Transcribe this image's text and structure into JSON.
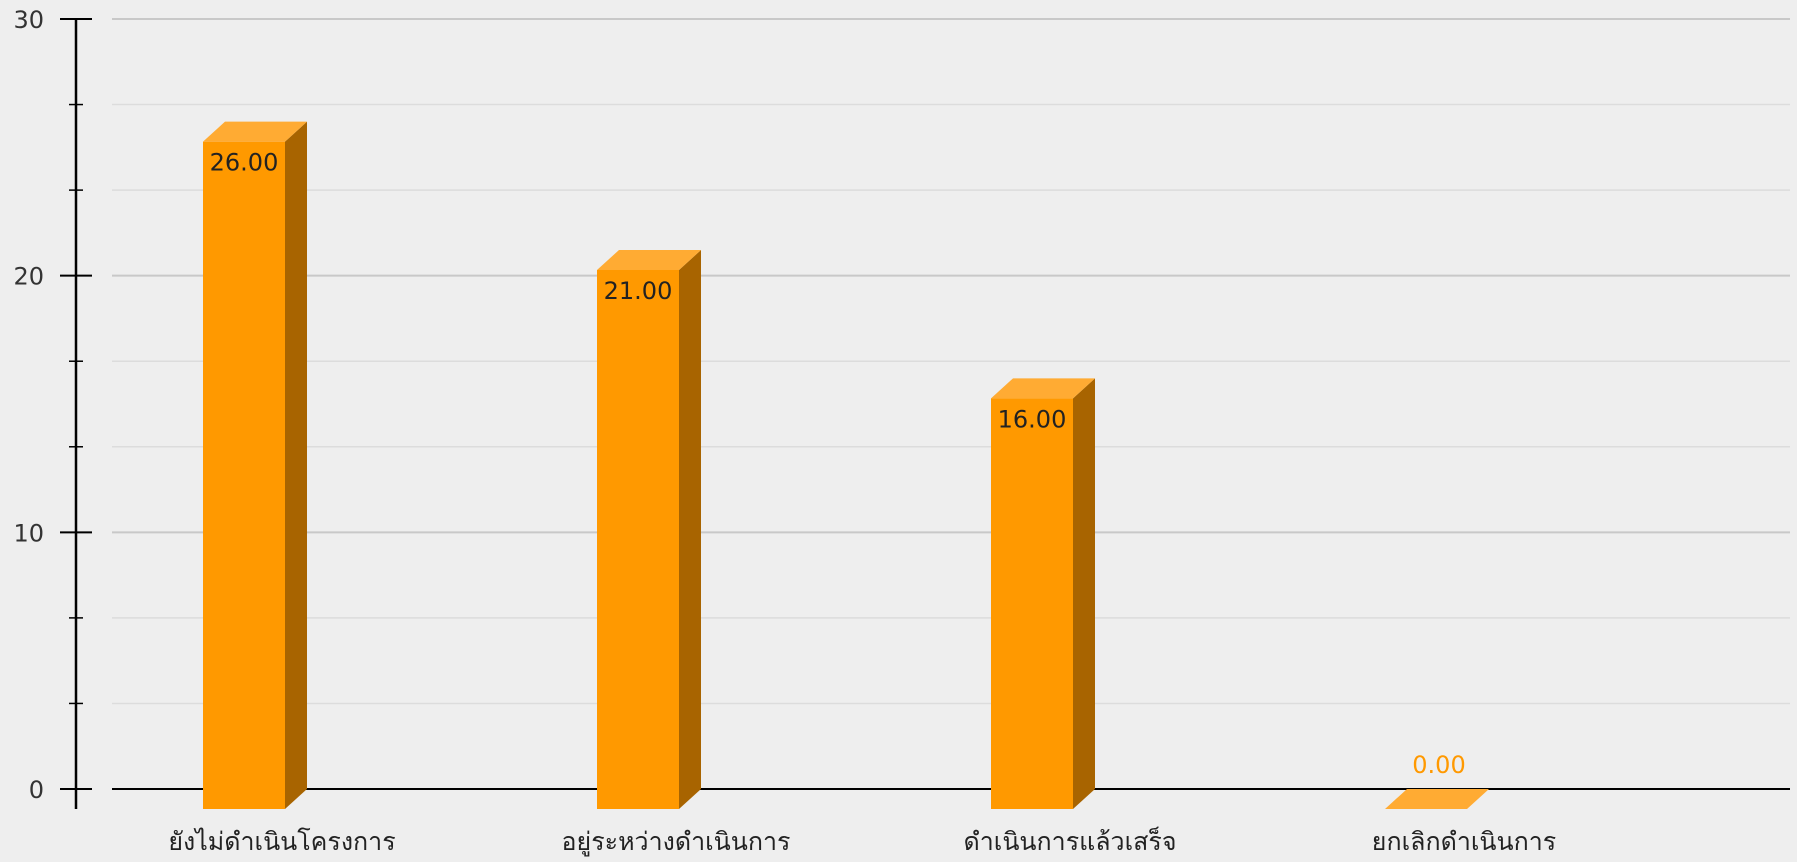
{
  "chart_data": {
    "type": "bar",
    "categories": [
      "ยังไม่ดำเนินโครงการ",
      "อยู่ระหว่างดำเนินการ",
      "ดำเนินการแล้วเสร็จ",
      "ยกเลิกดำเนินการ"
    ],
    "values": [
      26,
      21,
      16,
      0
    ],
    "data_labels": [
      "26.00",
      "21.00",
      "16.00",
      "0.00"
    ],
    "ylim": [
      0,
      30
    ],
    "yticks": [
      0,
      10,
      20,
      30
    ],
    "ytick_labels": [
      "0",
      "10",
      "20",
      "30"
    ],
    "minor_step": 3.333,
    "grid": true,
    "title": "",
    "xlabel": "",
    "ylabel": "",
    "colors": {
      "bar_front": "#ff9900",
      "bar_top": "#ffab33",
      "bar_side": "#a86400",
      "label_inside": "#222222",
      "label_zero": "#ff9900",
      "grid_major": "#c8c8c8",
      "grid_minor": "#dcdcdc",
      "axis": "#000000",
      "background": "#eeeeee"
    }
  }
}
